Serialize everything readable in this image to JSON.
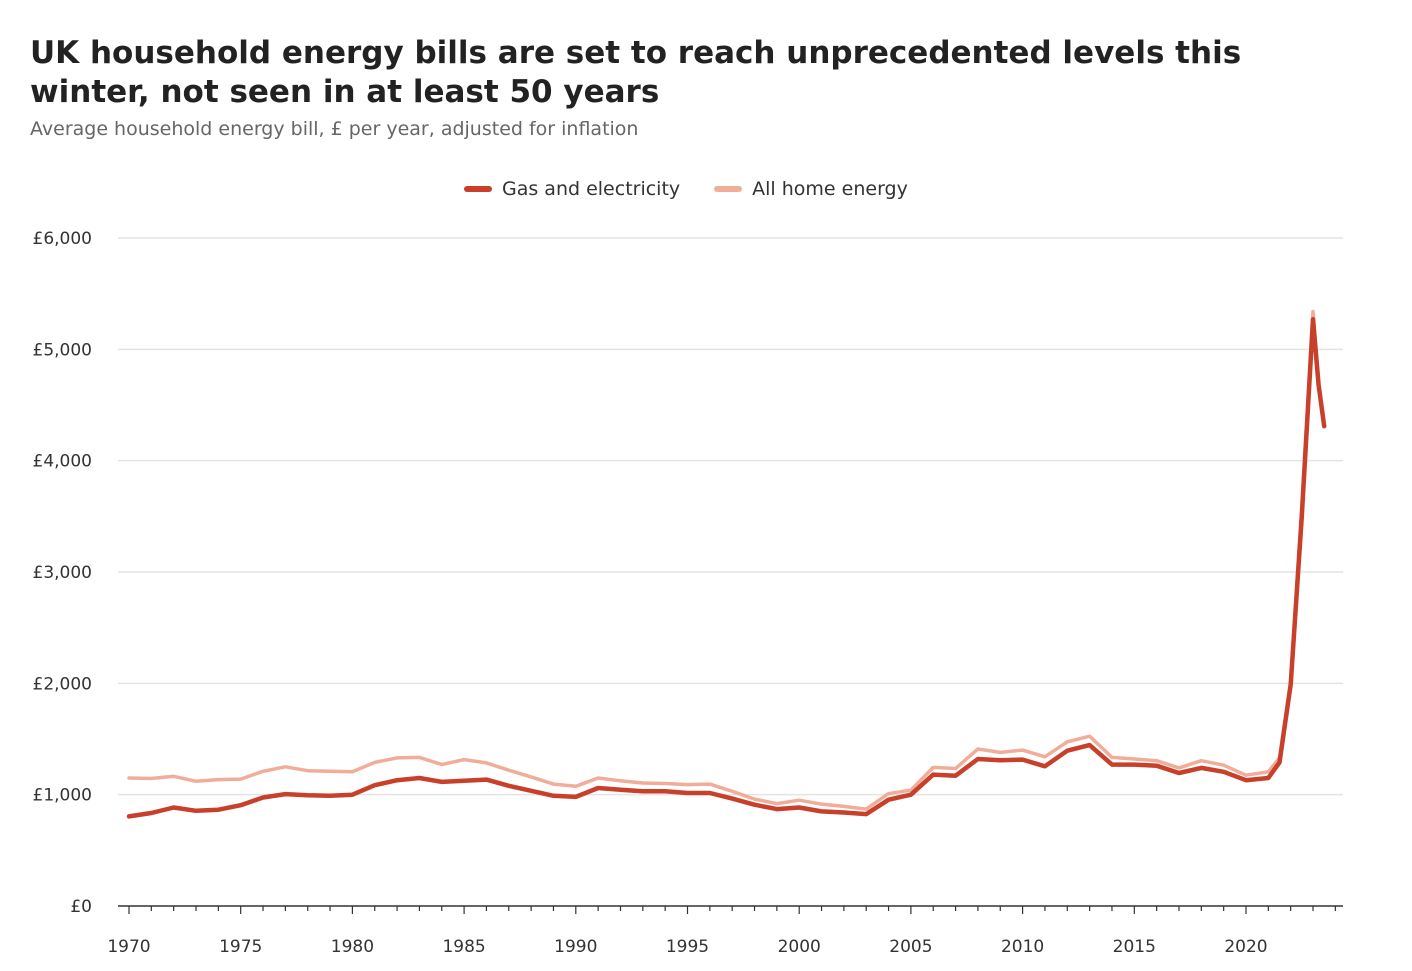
{
  "chart_data": {
    "type": "line",
    "title": "UK household energy bills are set to reach unprecedented levels this winter, not seen in at least 50 years",
    "subtitle": "Average household energy bill, £ per year, adjusted for inflation",
    "legend_position": "top-center",
    "grid": true,
    "xlim": [
      1970,
      2024
    ],
    "ylim": [
      0,
      6000
    ],
    "y_ticks": [
      0,
      1000,
      2000,
      3000,
      4000,
      5000,
      6000
    ],
    "y_tick_labels": [
      "£0",
      "£1,000",
      "£2,000",
      "£3,000",
      "£4,000",
      "£5,000",
      "£6,000"
    ],
    "x_ticks": [
      1970,
      1975,
      1980,
      1985,
      1990,
      1995,
      2000,
      2005,
      2010,
      2015,
      2020
    ],
    "x_tick_labels": [
      "1970",
      "1975",
      "1980",
      "1985",
      "1990",
      "1995",
      "2000",
      "2005",
      "2010",
      "2015",
      "2020"
    ],
    "series": [
      {
        "name": "All home energy",
        "color": "#f0ad9a",
        "x": [
          1970,
          1971,
          1972,
          1973,
          1974,
          1975,
          1976,
          1977,
          1978,
          1979,
          1980,
          1981,
          1982,
          1983,
          1984,
          1985,
          1986,
          1987,
          1988,
          1989,
          1990,
          1991,
          1992,
          1993,
          1994,
          1995,
          1996,
          1997,
          1998,
          1999,
          2000,
          2001,
          2002,
          2003,
          2004,
          2005,
          2006,
          2007,
          2008,
          2009,
          2010,
          2011,
          2012,
          2013,
          2014,
          2015,
          2016,
          2017,
          2018,
          2019,
          2020,
          2021,
          2021.5,
          2022,
          2022.5,
          2023,
          2023.25,
          2023.5
        ],
        "values": [
          1150,
          1145,
          1165,
          1120,
          1135,
          1140,
          1210,
          1250,
          1215,
          1210,
          1205,
          1290,
          1330,
          1335,
          1270,
          1315,
          1285,
          1220,
          1160,
          1095,
          1075,
          1150,
          1125,
          1105,
          1100,
          1090,
          1095,
          1030,
          960,
          920,
          950,
          915,
          895,
          870,
          1010,
          1040,
          1245,
          1235,
          1410,
          1380,
          1400,
          1340,
          1475,
          1525,
          1335,
          1320,
          1305,
          1240,
          1305,
          1265,
          1175,
          1205,
          1330,
          2020,
          3600,
          5340,
          4700,
          4320
        ]
      },
      {
        "name": "Gas and electricity",
        "color": "#c8402a",
        "x": [
          1970,
          1971,
          1972,
          1973,
          1974,
          1975,
          1976,
          1977,
          1978,
          1979,
          1980,
          1981,
          1982,
          1983,
          1984,
          1985,
          1986,
          1987,
          1988,
          1989,
          1990,
          1991,
          1992,
          1993,
          1994,
          1995,
          1996,
          1997,
          1998,
          1999,
          2000,
          2001,
          2002,
          2003,
          2004,
          2005,
          2006,
          2007,
          2008,
          2009,
          2010,
          2011,
          2012,
          2013,
          2014,
          2015,
          2016,
          2017,
          2018,
          2019,
          2020,
          2021,
          2021.5,
          2022,
          2022.5,
          2023,
          2023.25,
          2023.5
        ],
        "values": [
          805,
          835,
          885,
          855,
          865,
          905,
          975,
          1005,
          995,
          990,
          1000,
          1085,
          1130,
          1150,
          1115,
          1125,
          1135,
          1080,
          1035,
          990,
          980,
          1060,
          1045,
          1030,
          1030,
          1015,
          1015,
          965,
          910,
          870,
          885,
          850,
          840,
          825,
          955,
          1000,
          1180,
          1170,
          1320,
          1310,
          1315,
          1255,
          1395,
          1445,
          1270,
          1270,
          1260,
          1195,
          1240,
          1205,
          1130,
          1150,
          1290,
          1990,
          3500,
          5270,
          4680,
          4310
        ]
      }
    ]
  }
}
